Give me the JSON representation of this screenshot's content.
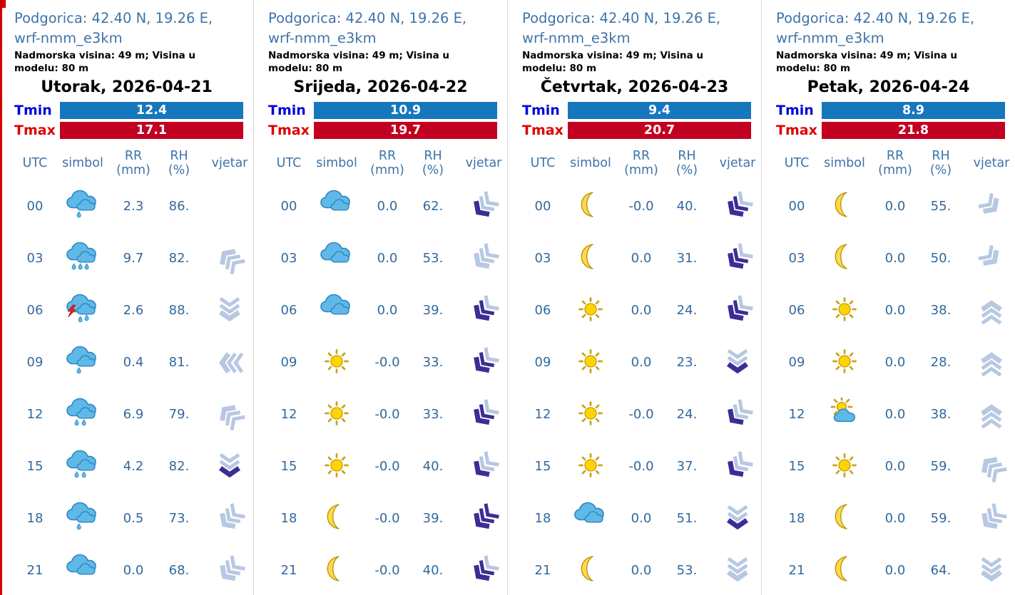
{
  "colors": {
    "header_text": "#3e74a8",
    "value_text": "#33689c",
    "tmin_label": "#0000dd",
    "tmax_label": "#dd0000",
    "tmin_bar": "#1777bd",
    "tmax_bar": "#c20021",
    "wind_light": "#b7c8e2",
    "wind_purple": "#3c2d96",
    "cloud_fill": "#5fb9e8",
    "cloud_stroke": "#2f85c0",
    "sun_fill": "#ffd400",
    "sun_stroke": "#c49b00",
    "moon_fill": "#ffd94d",
    "moon_stroke": "#b39200",
    "bolt_color": "#e32222",
    "corner_marker": "#d40000"
  },
  "labels": {
    "tmin": "Tmin",
    "tmax": "Tmax"
  },
  "table_header": {
    "utc": "UTC",
    "simbol": "simbol",
    "rr1": "RR",
    "rr2": "(mm)",
    "rh1": "RH",
    "rh2": "(%)",
    "vjetar": "vjetar"
  },
  "panels": [
    {
      "location": "Podgorica: 42.40 N, 19.26 E, wrf-nmm_e3km",
      "altitude": "Nadmorska visina: 49 m; Visina u modelu: 80 m",
      "day": "Utorak, 2026-04-21",
      "tmin": "12.4",
      "tmax": "17.1",
      "rows": [
        {
          "utc": "00",
          "icon": "rain-1",
          "rr": "2.3",
          "rh": "86.",
          "wind": null
        },
        {
          "utc": "03",
          "icon": "rain-3",
          "rr": "9.7",
          "rh": "82.",
          "wind": {
            "dir": "NW",
            "chevrons": [
              "light",
              "light",
              "light"
            ]
          }
        },
        {
          "utc": "06",
          "icon": "thunder",
          "rr": "2.6",
          "rh": "88.",
          "wind": {
            "dir": "S",
            "chevrons": [
              "light",
              "light",
              "light"
            ]
          }
        },
        {
          "utc": "09",
          "icon": "rain-1",
          "rr": "0.4",
          "rh": "81.",
          "wind": {
            "dir": "W",
            "chevrons": [
              "light",
              "light",
              "light"
            ]
          }
        },
        {
          "utc": "12",
          "icon": "rain-2",
          "rr": "6.9",
          "rh": "79.",
          "wind": {
            "dir": "NW",
            "chevrons": [
              "light",
              "light",
              "light"
            ]
          }
        },
        {
          "utc": "15",
          "icon": "rain-2",
          "rr": "4.2",
          "rh": "82.",
          "wind": {
            "dir": "S",
            "chevrons": [
              "light",
              "light",
              "purple"
            ]
          }
        },
        {
          "utc": "18",
          "icon": "rain-1",
          "rr": "0.5",
          "rh": "73.",
          "wind": {
            "dir": "SW",
            "chevrons": [
              "light",
              "light",
              "light"
            ]
          }
        },
        {
          "utc": "21",
          "icon": "cloud",
          "rr": "0.0",
          "rh": "68.",
          "wind": {
            "dir": "SW",
            "chevrons": [
              "light",
              "light",
              "light"
            ]
          }
        }
      ]
    },
    {
      "location": "Podgorica: 42.40 N, 19.26 E, wrf-nmm_e3km",
      "altitude": "Nadmorska visina: 49 m; Visina u modelu: 80 m",
      "day": "Srijeda, 2026-04-22",
      "tmin": "10.9",
      "tmax": "19.7",
      "rows": [
        {
          "utc": "00",
          "icon": "cloud",
          "rr": "0.0",
          "rh": "62.",
          "wind": {
            "dir": "SW",
            "chevrons": [
              "light",
              "light",
              "purple"
            ]
          }
        },
        {
          "utc": "03",
          "icon": "cloud",
          "rr": "0.0",
          "rh": "53.",
          "wind": {
            "dir": "SW",
            "chevrons": [
              "light",
              "light",
              "light"
            ]
          }
        },
        {
          "utc": "06",
          "icon": "cloud",
          "rr": "0.0",
          "rh": "39.",
          "wind": {
            "dir": "SW",
            "chevrons": [
              "light",
              "purple",
              "purple"
            ]
          }
        },
        {
          "utc": "09",
          "icon": "sun",
          "rr": "-0.0",
          "rh": "33.",
          "wind": {
            "dir": "SW",
            "chevrons": [
              "light",
              "purple",
              "purple"
            ]
          }
        },
        {
          "utc": "12",
          "icon": "sun",
          "rr": "-0.0",
          "rh": "33.",
          "wind": {
            "dir": "SW",
            "chevrons": [
              "light",
              "purple",
              "purple"
            ]
          }
        },
        {
          "utc": "15",
          "icon": "sun",
          "rr": "-0.0",
          "rh": "40.",
          "wind": {
            "dir": "SW",
            "chevrons": [
              "light",
              "light",
              "purple"
            ]
          }
        },
        {
          "utc": "18",
          "icon": "moon",
          "rr": "-0.0",
          "rh": "39.",
          "wind": {
            "dir": "SW",
            "chevrons": [
              "purple",
              "purple",
              "purple"
            ]
          }
        },
        {
          "utc": "21",
          "icon": "moon",
          "rr": "-0.0",
          "rh": "40.",
          "wind": {
            "dir": "SW",
            "chevrons": [
              "light",
              "purple",
              "purple"
            ]
          }
        }
      ]
    },
    {
      "location": "Podgorica: 42.40 N, 19.26 E, wrf-nmm_e3km",
      "altitude": "Nadmorska visina: 49 m; Visina u modelu: 80 m",
      "day": "Četvrtak, 2026-04-23",
      "tmin": "9.4",
      "tmax": "20.7",
      "rows": [
        {
          "utc": "00",
          "icon": "moon",
          "rr": "-0.0",
          "rh": "40.",
          "wind": {
            "dir": "SW",
            "chevrons": [
              "light",
              "purple",
              "purple"
            ]
          }
        },
        {
          "utc": "03",
          "icon": "moon",
          "rr": "0.0",
          "rh": "31.",
          "wind": {
            "dir": "SW",
            "chevrons": [
              "light",
              "purple",
              "purple"
            ]
          }
        },
        {
          "utc": "06",
          "icon": "sun",
          "rr": "0.0",
          "rh": "24.",
          "wind": {
            "dir": "SW",
            "chevrons": [
              "light",
              "purple",
              "purple"
            ]
          }
        },
        {
          "utc": "09",
          "icon": "sun",
          "rr": "0.0",
          "rh": "23.",
          "wind": {
            "dir": "S",
            "chevrons": [
              "light",
              "light",
              "purple"
            ]
          }
        },
        {
          "utc": "12",
          "icon": "sun",
          "rr": "-0.0",
          "rh": "24.",
          "wind": {
            "dir": "SW",
            "chevrons": [
              "light",
              "light",
              "purple"
            ]
          }
        },
        {
          "utc": "15",
          "icon": "sun",
          "rr": "-0.0",
          "rh": "37.",
          "wind": {
            "dir": "SW",
            "chevrons": [
              "light",
              "light",
              "purple"
            ]
          }
        },
        {
          "utc": "18",
          "icon": "cloud",
          "rr": "0.0",
          "rh": "51.",
          "wind": {
            "dir": "S",
            "chevrons": [
              "light",
              "light",
              "purple"
            ]
          }
        },
        {
          "utc": "21",
          "icon": "moon",
          "rr": "0.0",
          "rh": "53.",
          "wind": {
            "dir": "S",
            "chevrons": [
              "light",
              "light",
              "light"
            ]
          }
        }
      ]
    },
    {
      "location": "Podgorica: 42.40 N, 19.26 E, wrf-nmm_e3km",
      "altitude": "Nadmorska visina: 49 m; Visina u modelu: 80 m",
      "day": "Petak, 2026-04-24",
      "tmin": "8.9",
      "tmax": "21.8",
      "rows": [
        {
          "utc": "00",
          "icon": "moon",
          "rr": "0.0",
          "rh": "55.",
          "wind": {
            "dir": "SE",
            "chevrons": [
              "light",
              "light"
            ]
          }
        },
        {
          "utc": "03",
          "icon": "moon",
          "rr": "0.0",
          "rh": "50.",
          "wind": {
            "dir": "SE",
            "chevrons": [
              "light",
              "light"
            ]
          }
        },
        {
          "utc": "06",
          "icon": "sun",
          "rr": "0.0",
          "rh": "38.",
          "wind": {
            "dir": "N",
            "chevrons": [
              "light",
              "light",
              "light"
            ]
          }
        },
        {
          "utc": "09",
          "icon": "sun",
          "rr": "0.0",
          "rh": "28.",
          "wind": {
            "dir": "N",
            "chevrons": [
              "light",
              "light",
              "light"
            ]
          }
        },
        {
          "utc": "12",
          "icon": "sun-cloud",
          "rr": "0.0",
          "rh": "38.",
          "wind": {
            "dir": "N",
            "chevrons": [
              "light",
              "light",
              "light"
            ]
          }
        },
        {
          "utc": "15",
          "icon": "sun",
          "rr": "0.0",
          "rh": "59.",
          "wind": {
            "dir": "NW",
            "chevrons": [
              "light",
              "light",
              "light"
            ]
          }
        },
        {
          "utc": "18",
          "icon": "moon",
          "rr": "0.0",
          "rh": "59.",
          "wind": {
            "dir": "SW",
            "chevrons": [
              "light",
              "light",
              "light"
            ]
          }
        },
        {
          "utc": "21",
          "icon": "moon",
          "rr": "0.0",
          "rh": "64.",
          "wind": {
            "dir": "S",
            "chevrons": [
              "light",
              "light",
              "light"
            ]
          }
        }
      ]
    }
  ]
}
